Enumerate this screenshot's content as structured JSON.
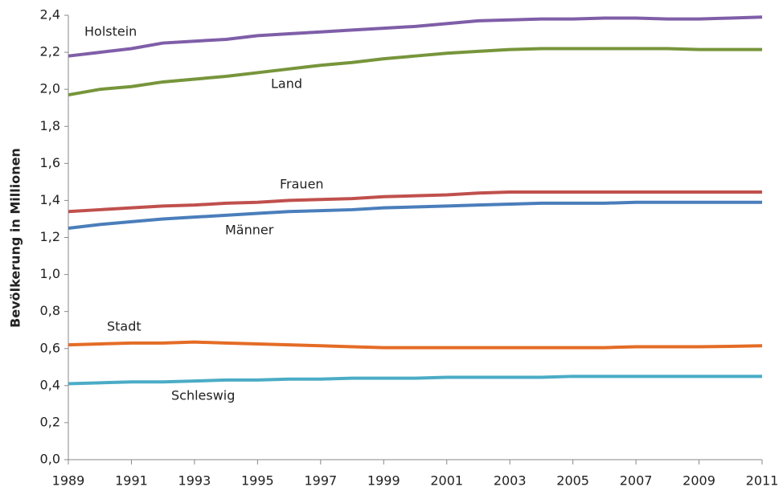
{
  "chart_data": {
    "type": "line",
    "y_label": "Bevölkerung in Millionen",
    "x": [
      1989,
      1990,
      1991,
      1992,
      1993,
      1994,
      1995,
      1996,
      1997,
      1998,
      1999,
      2000,
      2001,
      2002,
      2003,
      2004,
      2005,
      2006,
      2007,
      2008,
      2009,
      2010,
      2011
    ],
    "series": [
      {
        "name": "Holstein",
        "color": "#7f5ea8",
        "values": [
          2.18,
          2.2,
          2.22,
          2.25,
          2.26,
          2.27,
          2.29,
          2.3,
          2.31,
          2.32,
          2.33,
          2.34,
          2.355,
          2.37,
          2.375,
          2.38,
          2.38,
          2.385,
          2.385,
          2.38,
          2.38,
          2.385,
          2.39
        ]
      },
      {
        "name": "Land",
        "color": "#77953b",
        "values": [
          1.97,
          2.0,
          2.015,
          2.04,
          2.055,
          2.07,
          2.09,
          2.11,
          2.13,
          2.145,
          2.165,
          2.18,
          2.195,
          2.205,
          2.215,
          2.22,
          2.22,
          2.22,
          2.22,
          2.22,
          2.215,
          2.215,
          2.215
        ]
      },
      {
        "name": "Frauen",
        "color": "#c0504d",
        "values": [
          1.34,
          1.35,
          1.36,
          1.37,
          1.375,
          1.385,
          1.39,
          1.4,
          1.405,
          1.41,
          1.42,
          1.425,
          1.43,
          1.44,
          1.445,
          1.445,
          1.445,
          1.445,
          1.445,
          1.445,
          1.445,
          1.445,
          1.445
        ]
      },
      {
        "name": "Männer",
        "color": "#4a7ebb",
        "values": [
          1.25,
          1.27,
          1.285,
          1.3,
          1.31,
          1.32,
          1.33,
          1.34,
          1.345,
          1.35,
          1.36,
          1.365,
          1.37,
          1.375,
          1.38,
          1.385,
          1.385,
          1.385,
          1.39,
          1.39,
          1.39,
          1.39,
          1.39
        ]
      },
      {
        "name": "Stadt",
        "color": "#e46c26",
        "values": [
          0.62,
          0.625,
          0.63,
          0.63,
          0.635,
          0.63,
          0.625,
          0.62,
          0.615,
          0.61,
          0.605,
          0.605,
          0.605,
          0.605,
          0.605,
          0.605,
          0.605,
          0.605,
          0.61,
          0.61,
          0.61,
          0.612,
          0.615
        ]
      },
      {
        "name": "Schleswig",
        "color": "#4bacc6",
        "values": [
          0.41,
          0.415,
          0.42,
          0.42,
          0.425,
          0.43,
          0.43,
          0.435,
          0.435,
          0.44,
          0.44,
          0.44,
          0.445,
          0.445,
          0.445,
          0.445,
          0.45,
          0.45,
          0.45,
          0.45,
          0.45,
          0.45,
          0.45
        ]
      }
    ],
    "xlim": [
      1989,
      2011
    ],
    "xticks": [
      1989,
      1991,
      1993,
      1995,
      1997,
      1999,
      2001,
      2003,
      2005,
      2007,
      2009,
      2011
    ],
    "ylim": [
      0,
      2.4
    ],
    "yticks": [
      {
        "value": 0,
        "label": "0,0"
      },
      {
        "value": 0.2,
        "label": "0,2"
      },
      {
        "value": 0.4,
        "label": "0,4"
      },
      {
        "value": 0.6,
        "label": "0,6"
      },
      {
        "value": 0.8,
        "label": "0,8"
      },
      {
        "value": 1,
        "label": "1,0"
      },
      {
        "value": 1.2,
        "label": "1,2"
      },
      {
        "value": 1.4,
        "label": "1,4"
      },
      {
        "value": 1.6,
        "label": "1,6"
      },
      {
        "value": 1.8,
        "label": "1,8"
      },
      {
        "value": 2,
        "label": "2,0"
      },
      {
        "value": 2.2,
        "label": "2,2"
      },
      {
        "value": 2.4,
        "label": "2,4"
      }
    ],
    "grid": false
  }
}
